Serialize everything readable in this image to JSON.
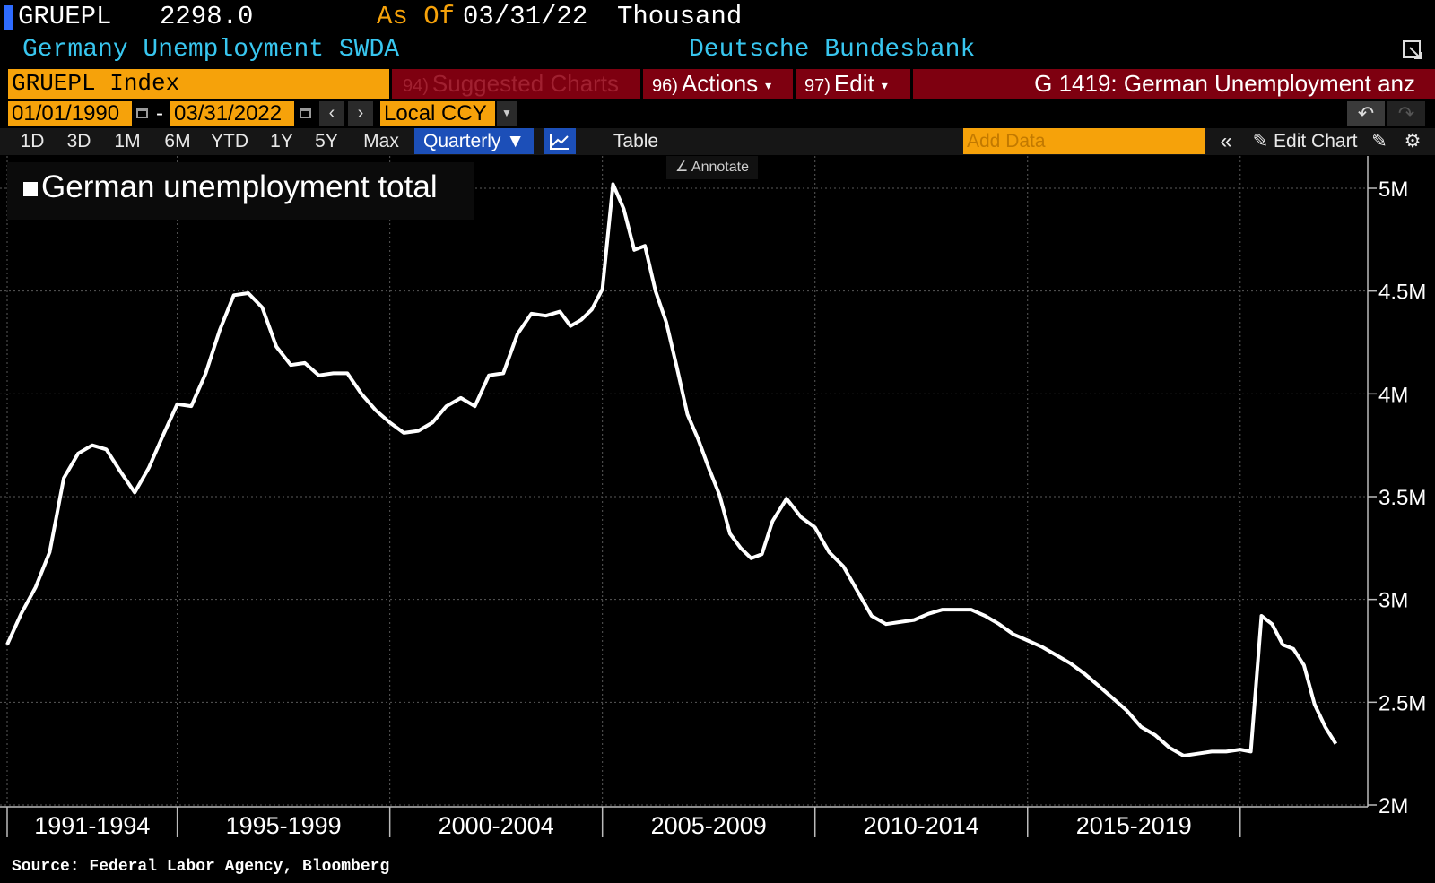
{
  "header": {
    "ticker": "GRUEPL",
    "last_value": "2298.0",
    "as_of_label": "As Of",
    "as_of_date": "03/31/22",
    "units": "Thousand",
    "description": "Germany Unemployment SWDA",
    "source": "Deutsche Bundesbank"
  },
  "menubar": {
    "security": "GRUEPL Index",
    "suggested_num": "94)",
    "suggested": "Suggested Charts",
    "actions_num": "96)",
    "actions": "Actions",
    "edit_num": "97)",
    "edit": "Edit",
    "title": "G 1419: German Unemployment anz"
  },
  "daterow": {
    "start": "01/01/1990",
    "end": "03/31/2022",
    "dash": "-",
    "currency": "Local CCY"
  },
  "toolbar": {
    "ranges": [
      "1D",
      "3D",
      "1M",
      "6M",
      "YTD",
      "1Y",
      "5Y",
      "Max"
    ],
    "frequency": "Quarterly",
    "table": "Table",
    "add_data_placeholder": "Add Data",
    "edit_chart": "Edit Chart"
  },
  "annotate": "Annotate",
  "legend": {
    "series_name": "German unemployment total"
  },
  "source_note": "Source: Federal Labor Agency, Bloomberg",
  "colors": {
    "accent_orange": "#f6a20a",
    "menu_red": "#7e0010",
    "title_cyan": "#38c6ef",
    "button_blue": "#1c4fb8",
    "line": "#ffffff"
  },
  "icons": [
    "calendar-icon",
    "chevron-left-icon",
    "chevron-right-icon",
    "dropdown-icon",
    "undo-icon",
    "redo-icon",
    "line-chart-icon",
    "double-chevron-left-icon",
    "pencil-icon",
    "gear-icon",
    "popout-icon"
  ],
  "chart_data": {
    "type": "line",
    "ylim": [
      2000,
      5100
    ],
    "y_ticks": [
      2000,
      2500,
      3000,
      3500,
      4000,
      4500,
      5000
    ],
    "y_tick_labels": [
      "2M",
      "2.5M",
      "3M",
      "3.5M",
      "4M",
      "4.5M",
      "5M"
    ],
    "x_range": [
      1991.0,
      2023.0
    ],
    "x_periods": [
      "1991-1994",
      "1995-1999",
      "2000-2004",
      "2005-2009",
      "2010-2014",
      "2015-2019"
    ],
    "grid": true,
    "series": [
      {
        "name": "German unemployment total",
        "x": [
          1991.0,
          1991.33,
          1991.67,
          1992.0,
          1992.33,
          1992.67,
          1993.0,
          1993.33,
          1993.67,
          1994.0,
          1994.33,
          1994.67,
          1995.0,
          1995.33,
          1995.67,
          1996.0,
          1996.33,
          1996.67,
          1997.0,
          1997.33,
          1997.67,
          1998.0,
          1998.33,
          1998.67,
          1999.0,
          1999.33,
          1999.67,
          2000.0,
          2000.33,
          2000.67,
          2001.0,
          2001.33,
          2001.67,
          2002.0,
          2002.33,
          2002.67,
          2003.0,
          2003.33,
          2003.67,
          2004.0,
          2004.25,
          2004.5,
          2004.75,
          2005.0,
          2005.25,
          2005.5,
          2005.75,
          2006.0,
          2006.25,
          2006.5,
          2006.75,
          2007.0,
          2007.25,
          2007.5,
          2007.75,
          2008.0,
          2008.25,
          2008.5,
          2008.75,
          2009.0,
          2009.33,
          2009.67,
          2010.0,
          2010.33,
          2010.67,
          2011.0,
          2011.33,
          2011.67,
          2012.0,
          2012.33,
          2012.67,
          2013.0,
          2013.33,
          2013.67,
          2014.0,
          2014.33,
          2014.67,
          2015.0,
          2015.33,
          2015.67,
          2016.0,
          2016.33,
          2016.67,
          2017.0,
          2017.33,
          2017.67,
          2018.0,
          2018.33,
          2018.67,
          2019.0,
          2019.33,
          2019.67,
          2020.0,
          2020.25,
          2020.5,
          2020.75,
          2021.0,
          2021.25,
          2021.5,
          2021.75,
          2022.0,
          2022.25
        ],
        "y": [
          2780,
          2930,
          3060,
          3230,
          3590,
          3710,
          3750,
          3730,
          3620,
          3520,
          3640,
          3800,
          3950,
          3940,
          4100,
          4310,
          4480,
          4490,
          4420,
          4230,
          4140,
          4150,
          4090,
          4100,
          4100,
          4000,
          3920,
          3860,
          3810,
          3820,
          3860,
          3940,
          3980,
          3940,
          4090,
          4100,
          4290,
          4390,
          4380,
          4400,
          4330,
          4360,
          4410,
          4510,
          5020,
          4900,
          4700,
          4720,
          4500,
          4350,
          4130,
          3900,
          3780,
          3640,
          3510,
          3320,
          3250,
          3200,
          3220,
          3380,
          3490,
          3400,
          3350,
          3230,
          3160,
          3040,
          2920,
          2880,
          2890,
          2900,
          2930,
          2950,
          2950,
          2950,
          2920,
          2880,
          2830,
          2800,
          2770,
          2730,
          2690,
          2640,
          2580,
          2520,
          2460,
          2380,
          2340,
          2280,
          2240,
          2250,
          2260,
          2260,
          2270,
          2260,
          2920,
          2880,
          2780,
          2760,
          2680,
          2490,
          2380,
          2298
        ]
      }
    ]
  }
}
